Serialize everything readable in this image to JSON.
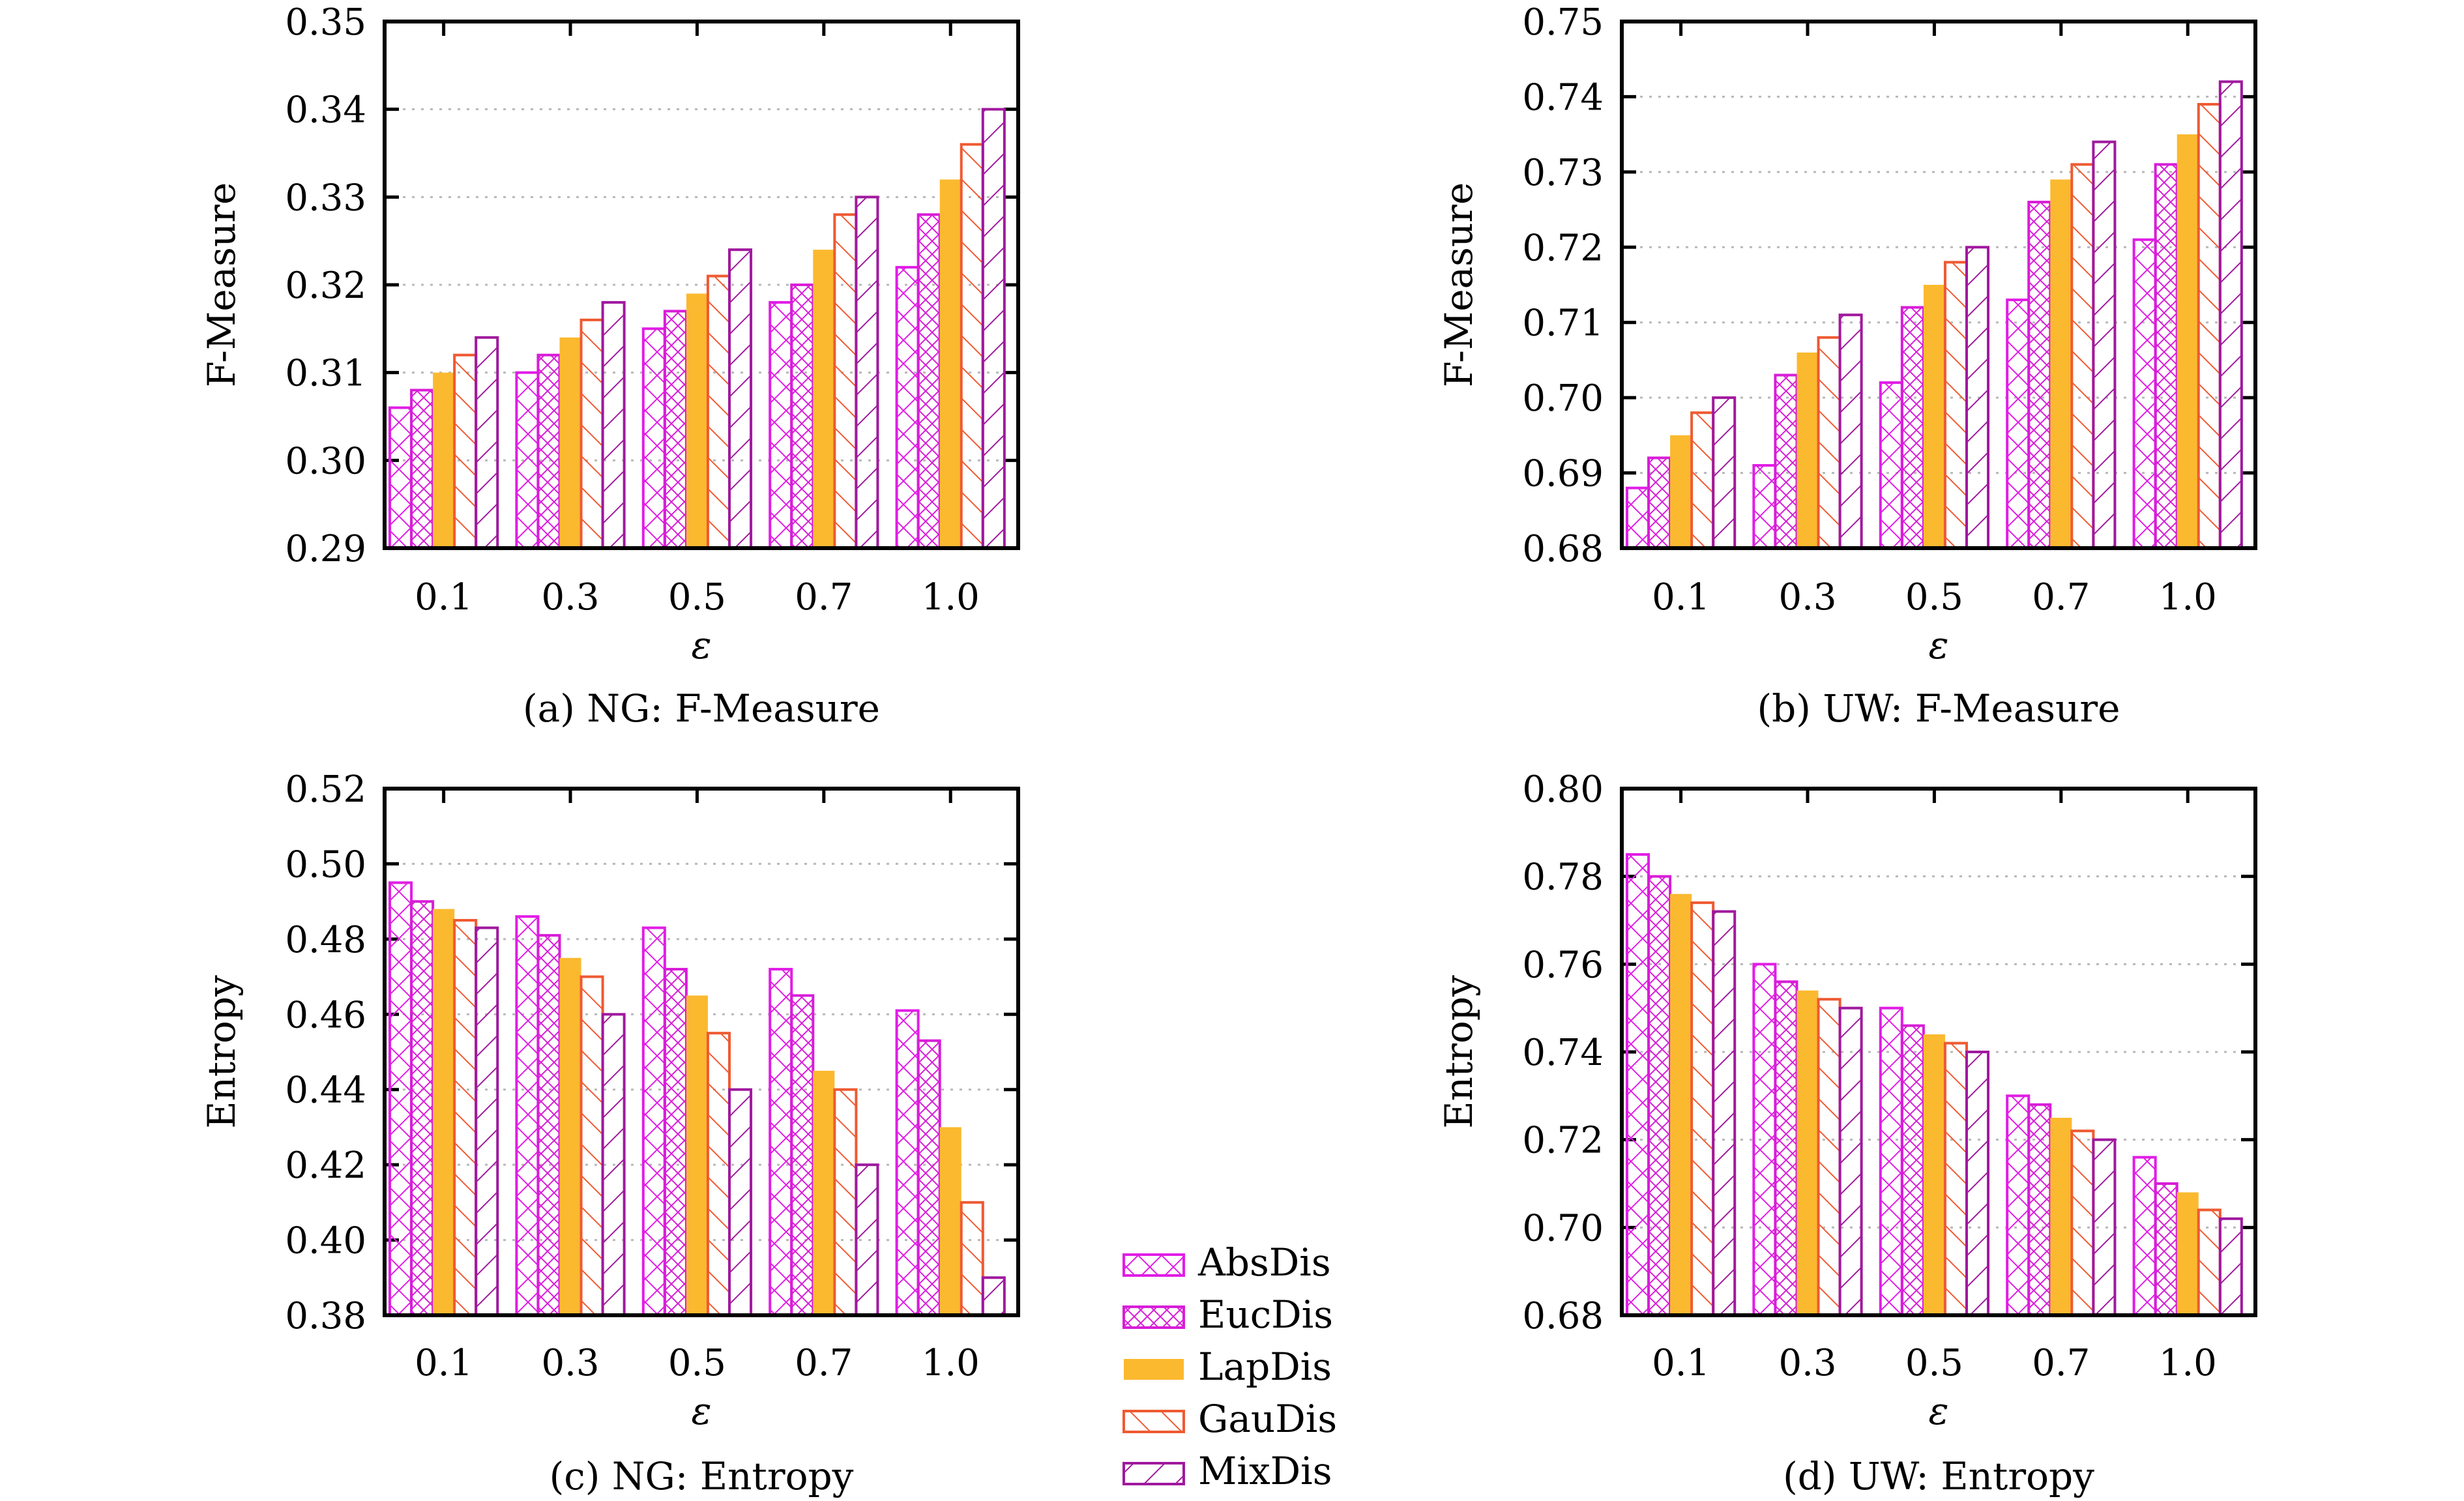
{
  "legend": [
    {
      "name": "AbsDis",
      "pattern": "wide-cross",
      "color": "#e11de6"
    },
    {
      "name": "EucDis",
      "pattern": "dense-cross",
      "color": "#d81dd8"
    },
    {
      "name": "LapDis",
      "pattern": "solid",
      "color": "#fbb92f"
    },
    {
      "name": "GauDis",
      "pattern": "back-diagonal",
      "color": "#ef5a32"
    },
    {
      "name": "MixDis",
      "pattern": "forward-diagonal",
      "color": "#a0199e"
    }
  ],
  "chart_data": [
    {
      "type": "bar",
      "caption": "(a) NG: F-Measure",
      "xlabel": "ε",
      "ylabel": "F-Measure",
      "categories": [
        "0.1",
        "0.3",
        "0.5",
        "0.7",
        "1.0"
      ],
      "ylim": [
        0.29,
        0.35
      ],
      "yticks": [
        "0.29",
        "0.30",
        "0.31",
        "0.32",
        "0.33",
        "0.34",
        "0.35"
      ],
      "grid": true,
      "series": [
        {
          "name": "AbsDis",
          "values": [
            0.306,
            0.31,
            0.315,
            0.318,
            0.322
          ]
        },
        {
          "name": "EucDis",
          "values": [
            0.308,
            0.312,
            0.317,
            0.32,
            0.328
          ]
        },
        {
          "name": "LapDis",
          "values": [
            0.31,
            0.314,
            0.319,
            0.324,
            0.332
          ]
        },
        {
          "name": "GauDis",
          "values": [
            0.312,
            0.316,
            0.321,
            0.328,
            0.336
          ]
        },
        {
          "name": "MixDis",
          "values": [
            0.314,
            0.318,
            0.324,
            0.33,
            0.34
          ]
        }
      ]
    },
    {
      "type": "bar",
      "caption": "(b) UW: F-Measure",
      "xlabel": "ε",
      "ylabel": "F-Measure",
      "categories": [
        "0.1",
        "0.3",
        "0.5",
        "0.7",
        "1.0"
      ],
      "ylim": [
        0.68,
        0.75
      ],
      "yticks": [
        "0.68",
        "0.69",
        "0.70",
        "0.71",
        "0.72",
        "0.73",
        "0.74",
        "0.75"
      ],
      "grid": true,
      "series": [
        {
          "name": "AbsDis",
          "values": [
            0.688,
            0.691,
            0.702,
            0.713,
            0.721
          ]
        },
        {
          "name": "EucDis",
          "values": [
            0.692,
            0.703,
            0.712,
            0.726,
            0.731
          ]
        },
        {
          "name": "LapDis",
          "values": [
            0.695,
            0.706,
            0.715,
            0.729,
            0.735
          ]
        },
        {
          "name": "GauDis",
          "values": [
            0.698,
            0.708,
            0.718,
            0.731,
            0.739
          ]
        },
        {
          "name": "MixDis",
          "values": [
            0.7,
            0.711,
            0.72,
            0.734,
            0.742
          ]
        }
      ]
    },
    {
      "type": "bar",
      "caption": "(c) NG: Entropy",
      "xlabel": "ε",
      "ylabel": "Entropy",
      "categories": [
        "0.1",
        "0.3",
        "0.5",
        "0.7",
        "1.0"
      ],
      "ylim": [
        0.38,
        0.52
      ],
      "yticks": [
        "0.38",
        "0.40",
        "0.42",
        "0.44",
        "0.46",
        "0.48",
        "0.50",
        "0.52"
      ],
      "grid": true,
      "series": [
        {
          "name": "AbsDis",
          "values": [
            0.495,
            0.486,
            0.483,
            0.472,
            0.461
          ]
        },
        {
          "name": "EucDis",
          "values": [
            0.49,
            0.481,
            0.472,
            0.465,
            0.453
          ]
        },
        {
          "name": "LapDis",
          "values": [
            0.488,
            0.475,
            0.465,
            0.445,
            0.43
          ]
        },
        {
          "name": "GauDis",
          "values": [
            0.485,
            0.47,
            0.455,
            0.44,
            0.41
          ]
        },
        {
          "name": "MixDis",
          "values": [
            0.483,
            0.46,
            0.44,
            0.42,
            0.39
          ]
        }
      ]
    },
    {
      "type": "bar",
      "caption": "(d) UW: Entropy",
      "xlabel": "ε",
      "ylabel": "Entropy",
      "categories": [
        "0.1",
        "0.3",
        "0.5",
        "0.7",
        "1.0"
      ],
      "ylim": [
        0.68,
        0.8
      ],
      "yticks": [
        "0.68",
        "0.70",
        "0.72",
        "0.74",
        "0.76",
        "0.78",
        "0.80"
      ],
      "grid": true,
      "series": [
        {
          "name": "AbsDis",
          "values": [
            0.785,
            0.76,
            0.75,
            0.73,
            0.716
          ]
        },
        {
          "name": "EucDis",
          "values": [
            0.78,
            0.756,
            0.746,
            0.728,
            0.71
          ]
        },
        {
          "name": "LapDis",
          "values": [
            0.776,
            0.754,
            0.744,
            0.725,
            0.708
          ]
        },
        {
          "name": "GauDis",
          "values": [
            0.774,
            0.752,
            0.742,
            0.722,
            0.704
          ]
        },
        {
          "name": "MixDis",
          "values": [
            0.772,
            0.75,
            0.74,
            0.72,
            0.702
          ]
        }
      ]
    }
  ]
}
